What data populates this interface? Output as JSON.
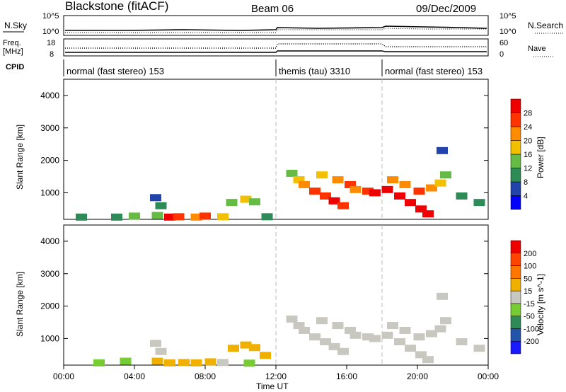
{
  "header": {
    "station": "Blackstone (fitACF)",
    "beam": "Beam 06",
    "date": "09/Dec/2009"
  },
  "noise_panel": {
    "left_label": "N.Sky",
    "right_label": "N.Search",
    "left_ticks": [
      "10^5",
      "10^0"
    ],
    "right_ticks": [
      "10^5",
      "10^0"
    ]
  },
  "freq_panel": {
    "left_label_line1": "Freq.",
    "left_label_line2": "[MHz]",
    "right_label": "Nave",
    "left_ticks": [
      "18",
      "8"
    ],
    "right_ticks": [
      "60",
      "0"
    ]
  },
  "cpid": {
    "label": "CPID",
    "segments": [
      {
        "text": "normal (fast stereo) 153",
        "start_hour": 0,
        "end_hour": 12
      },
      {
        "text": "themis (tau) 3310",
        "start_hour": 12,
        "end_hour": 18
      },
      {
        "text": "normal (fast stereo) 153",
        "start_hour": 18,
        "end_hour": 24
      }
    ]
  },
  "colors": {
    "power_scale": [
      "#0000ff",
      "#2244aa",
      "#2e8b57",
      "#66bb44",
      "#f2c000",
      "#ff8c00",
      "#ff3300",
      "#ee0000"
    ],
    "velocity_scale": [
      "#1a1aff",
      "#2255aa",
      "#2e8b57",
      "#77cc33",
      "#c8c8c0",
      "#f0b000",
      "#ff7700",
      "#ff4400",
      "#ee0000"
    ]
  },
  "chart_data": [
    {
      "type": "heatmap",
      "name": "power",
      "ylabel": "Slant Range [km]",
      "colorbar_label": "Power [dB]",
      "colorbar_ticks": [
        "28",
        "24",
        "20",
        "16",
        "12",
        "8",
        "4"
      ],
      "yticks": [
        "4000",
        "3000",
        "2000",
        "1000"
      ],
      "ylim": [
        180,
        4500
      ],
      "xlim_hours": [
        0,
        24
      ],
      "cells": [
        [
          5.2,
          850,
          1
        ],
        [
          5.5,
          600,
          2
        ],
        [
          5.3,
          300,
          3
        ],
        [
          6.0,
          250,
          7
        ],
        [
          6.5,
          260,
          6
        ],
        [
          7.5,
          250,
          5
        ],
        [
          8.0,
          280,
          6
        ],
        [
          9.0,
          260,
          4
        ],
        [
          9.5,
          700,
          3
        ],
        [
          10.3,
          800,
          4
        ],
        [
          10.8,
          720,
          3
        ],
        [
          11.5,
          260,
          2
        ],
        [
          1.0,
          250,
          2
        ],
        [
          3.0,
          250,
          2
        ],
        [
          4.0,
          280,
          3
        ],
        [
          12.9,
          1600,
          3
        ],
        [
          13.3,
          1400,
          4
        ],
        [
          13.6,
          1250,
          5
        ],
        [
          14.2,
          1050,
          6
        ],
        [
          14.8,
          900,
          6
        ],
        [
          15.3,
          750,
          7
        ],
        [
          15.8,
          600,
          6
        ],
        [
          14.6,
          1550,
          4
        ],
        [
          15.5,
          1400,
          5
        ],
        [
          16.2,
          1250,
          6
        ],
        [
          16.5,
          1100,
          5
        ],
        [
          17.2,
          1050,
          6
        ],
        [
          17.6,
          1000,
          7
        ],
        [
          18.3,
          1100,
          7
        ],
        [
          19.0,
          900,
          7
        ],
        [
          19.6,
          700,
          7
        ],
        [
          20.2,
          500,
          8
        ],
        [
          20.6,
          350,
          7
        ],
        [
          18.6,
          1400,
          5
        ],
        [
          19.3,
          1250,
          5
        ],
        [
          20.1,
          1050,
          6
        ],
        [
          20.8,
          1150,
          5
        ],
        [
          21.3,
          1300,
          4
        ],
        [
          21.6,
          1550,
          3
        ],
        [
          22.5,
          900,
          2
        ],
        [
          23.5,
          700,
          2
        ],
        [
          21.4,
          2300,
          1
        ]
      ]
    },
    {
      "type": "heatmap",
      "name": "velocity",
      "ylabel": "Slant Range [km]",
      "colorbar_label": "Velocity [m s^-1]",
      "colorbar_ticks": [
        "200",
        "100",
        "50",
        "15",
        "-15",
        "-50",
        "-100",
        "-200"
      ],
      "yticks": [
        "4000",
        "3000",
        "2000",
        "1000"
      ],
      "xticks": [
        "00:00",
        "04:00",
        "08:00",
        "12:00",
        "16:00",
        "20:00",
        "00:00"
      ],
      "xlabel": "Time UT",
      "ylim": [
        180,
        4500
      ],
      "xlim_hours": [
        0,
        24
      ],
      "cells": [
        [
          5.2,
          850,
          4
        ],
        [
          5.5,
          600,
          4
        ],
        [
          5.3,
          300,
          5
        ],
        [
          6.0,
          250,
          5
        ],
        [
          6.8,
          260,
          5
        ],
        [
          7.5,
          250,
          5
        ],
        [
          8.3,
          280,
          5
        ],
        [
          9.0,
          260,
          4
        ],
        [
          9.6,
          700,
          5
        ],
        [
          10.3,
          800,
          5
        ],
        [
          10.8,
          720,
          5
        ],
        [
          11.4,
          480,
          5
        ],
        [
          3.5,
          300,
          3
        ],
        [
          2.0,
          250,
          3
        ],
        [
          10.5,
          240,
          3
        ],
        [
          12.9,
          1600,
          4
        ],
        [
          13.3,
          1400,
          4
        ],
        [
          13.6,
          1250,
          4
        ],
        [
          14.2,
          1050,
          4
        ],
        [
          14.8,
          900,
          4
        ],
        [
          15.3,
          750,
          4
        ],
        [
          15.8,
          600,
          4
        ],
        [
          14.6,
          1550,
          4
        ],
        [
          15.5,
          1400,
          4
        ],
        [
          16.2,
          1250,
          4
        ],
        [
          16.5,
          1100,
          4
        ],
        [
          17.2,
          1050,
          4
        ],
        [
          17.6,
          1000,
          4
        ],
        [
          18.3,
          1100,
          4
        ],
        [
          19.0,
          900,
          4
        ],
        [
          19.6,
          700,
          4
        ],
        [
          20.2,
          500,
          4
        ],
        [
          20.6,
          350,
          4
        ],
        [
          18.6,
          1400,
          4
        ],
        [
          19.3,
          1250,
          4
        ],
        [
          20.1,
          1050,
          4
        ],
        [
          20.8,
          1150,
          4
        ],
        [
          21.3,
          1300,
          4
        ],
        [
          21.6,
          1550,
          4
        ],
        [
          22.5,
          900,
          4
        ],
        [
          23.5,
          700,
          4
        ],
        [
          21.4,
          2300,
          4
        ]
      ]
    }
  ]
}
